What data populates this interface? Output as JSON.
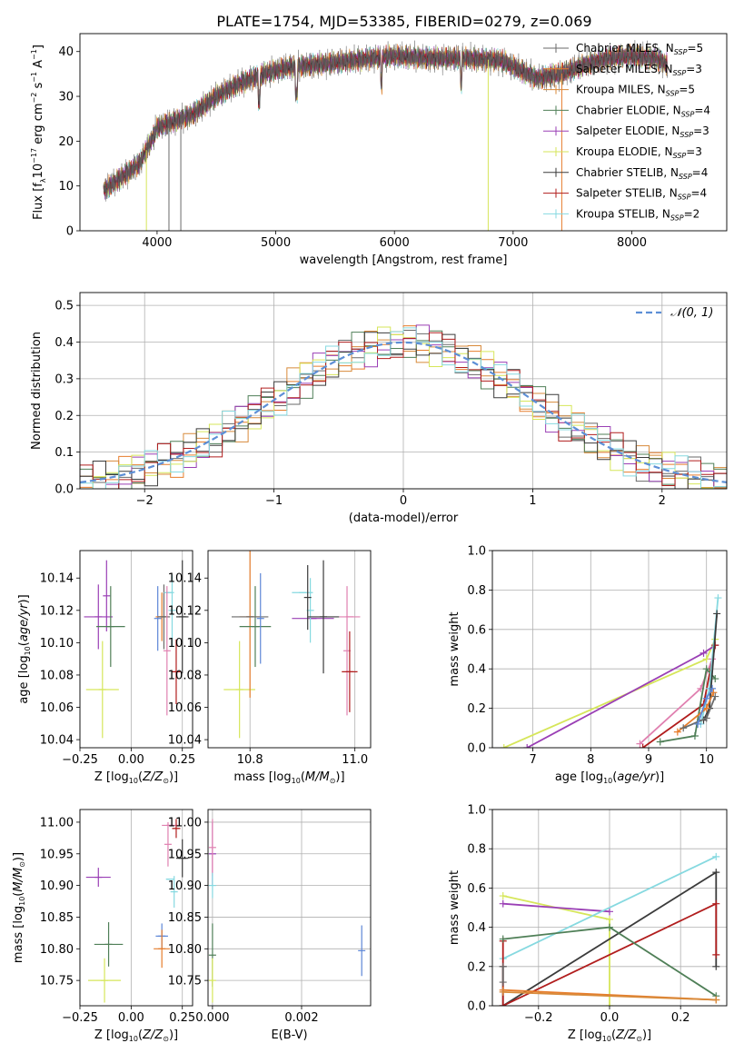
{
  "figure_title": "PLATE=1754, MJD=53385, FIBERID=0279, z=0.069",
  "colors": {
    "chabrier_miles": "#6a6a6a",
    "salpeter_miles": "#e67d2c",
    "kroupa_miles": "#d88a3a",
    "chabrier_elodie": "#4f7f57",
    "salpeter_elodie": "#9a3fb5",
    "kroupa_elodie": "#d6e65a",
    "chabrier_stelib": "#3b3b3b",
    "salpeter_stelib": "#b11d1d",
    "kroupa_stelib": "#86d9e0",
    "pink": "#e080b0",
    "blue": "#5d86d6",
    "gauss": "#5d8fd6"
  },
  "chart_data": [
    {
      "id": "spectrum",
      "type": "line",
      "title": "",
      "xlabel": "wavelength [Angstrom, rest frame]",
      "ylabel_html": "Flux [f<tspan font-size='8' dy='4'>λ</tspan><tspan dy='-4'>10</tspan><tspan font-size='8' dy='-6'>−17</tspan><tspan dy='6'> erg cm</tspan><tspan font-size='8' dy='-6'>−2</tspan><tspan dy='6'> s</tspan><tspan font-size='8' dy='-6'>−1</tspan><tspan dy='6'> A</tspan><tspan font-size='8' dy='-6'>−1</tspan><tspan dy='6'>]</tspan>",
      "xlim": [
        3350,
        8800
      ],
      "ylim": [
        0,
        44
      ],
      "xticks": [
        4000,
        5000,
        6000,
        7000,
        8000
      ],
      "yticks": [
        0,
        10,
        20,
        30,
        40
      ],
      "legend": [
        {
          "label_html": "Chabrier MILES, N<tspan font-size='8' dy='3' font-style='italic'>SSP</tspan><tspan dy='-3'>=5</tspan>",
          "color_key": "chabrier_miles"
        },
        {
          "label_html": "Salpeter MILES, N<tspan font-size='8' dy='3' font-style='italic'>SSP</tspan><tspan dy='-3'>=3</tspan>",
          "color_key": "salpeter_miles"
        },
        {
          "label_html": "Kroupa MILES, N<tspan font-size='8' dy='3' font-style='italic'>SSP</tspan><tspan dy='-3'>=5</tspan>",
          "color_key": "kroupa_miles"
        },
        {
          "label_html": "Chabrier ELODIE, N<tspan font-size='8' dy='3' font-style='italic'>SSP</tspan><tspan dy='-3'>=4</tspan>",
          "color_key": "chabrier_elodie"
        },
        {
          "label_html": "Salpeter ELODIE, N<tspan font-size='8' dy='3' font-style='italic'>SSP</tspan><tspan dy='-3'>=3</tspan>",
          "color_key": "salpeter_elodie"
        },
        {
          "label_html": "Kroupa ELODIE, N<tspan font-size='8' dy='3' font-style='italic'>SSP</tspan><tspan dy='-3'>=3</tspan>",
          "color_key": "kroupa_elodie"
        },
        {
          "label_html": "Chabrier STELIB, N<tspan font-size='8' dy='3' font-style='italic'>SSP</tspan><tspan dy='-3'>=4</tspan>",
          "color_key": "chabrier_stelib"
        },
        {
          "label_html": "Salpeter STELIB, N<tspan font-size='8' dy='3' font-style='italic'>SSP</tspan><tspan dy='-3'>=4</tspan>",
          "color_key": "salpeter_stelib"
        },
        {
          "label_html": "Kroupa STELIB, N<tspan font-size='8' dy='3' font-style='italic'>SSP</tspan><tspan dy='-3'>=2</tspan>",
          "color_key": "kroupa_stelib"
        }
      ],
      "continuum": {
        "x": [
          3550,
          3700,
          3850,
          3950,
          4000,
          4100,
          4300,
          4500,
          4700,
          4900,
          5100,
          5300,
          5500,
          5800,
          6000,
          6300,
          6600,
          6900,
          7200,
          7400,
          7600,
          7800,
          8000,
          8200,
          8300
        ],
        "y": [
          9,
          12,
          15,
          20,
          23,
          24,
          26,
          30,
          33,
          35,
          36.5,
          37,
          37.5,
          38.5,
          39,
          38.5,
          38.5,
          38,
          34,
          35,
          37,
          38.5,
          39,
          38.5,
          37
        ]
      },
      "dropouts": [
        {
          "x": 3910,
          "color_key": "kroupa_elodie"
        },
        {
          "x": 4100,
          "color_key": "chabrier_miles"
        },
        {
          "x": 4200,
          "color_key": "chabrier_miles"
        },
        {
          "x": 6790,
          "color_key": "kroupa_elodie"
        },
        {
          "x": 7410,
          "color_key": "salpeter_miles"
        }
      ]
    },
    {
      "id": "residuals",
      "type": "histogram",
      "title": "",
      "xlabel": "(data-model)/error",
      "ylabel": "Normed distribution",
      "xlim": [
        -2.5,
        2.5
      ],
      "ylim": [
        0,
        0.535
      ],
      "xticks": [
        -2,
        -1,
        0,
        1,
        2
      ],
      "yticks": [
        0.0,
        0.1,
        0.2,
        0.3,
        0.4,
        0.5
      ],
      "grid": true,
      "legend_label": "𝒩(0, 1)",
      "legend_position": "top-right",
      "bin_width": 0.1
    },
    {
      "id": "age_vs_z",
      "type": "scatter",
      "xlabel": "Z [log<tspan font-size='8' dy='3'>10</tspan><tspan dy='-3'>(</tspan><tspan font-style='italic'>Z/Z</tspan><tspan font-size='8' dy='3'>⊙</tspan><tspan dy='-3'>)]</tspan>",
      "ylabel_html": "age  [log<tspan font-size='8' dy='3'>10</tspan><tspan dy='-3'>(</tspan><tspan font-style='italic'>age/yr</tspan>)]",
      "xlim": [
        -0.25,
        0.3
      ],
      "ylim": [
        10.035,
        10.157
      ],
      "xticks": [
        -0.25,
        0.0,
        0.25
      ],
      "yticks": [
        10.04,
        10.06,
        10.08,
        10.1,
        10.12,
        10.14
      ],
      "grid": "x",
      "points": [
        {
          "x": -0.16,
          "y": 10.116,
          "xerr": 0.07,
          "yerr": 0.02,
          "color_key": "salpeter_elodie"
        },
        {
          "x": -0.12,
          "y": 10.129,
          "xerr": 0.0,
          "yerr": 0.022,
          "color_key": "salpeter_elodie"
        },
        {
          "x": -0.1,
          "y": 10.11,
          "xerr": 0.07,
          "yerr": 0.025,
          "color_key": "chabrier_elodie"
        },
        {
          "x": -0.14,
          "y": 10.071,
          "xerr": 0.08,
          "yerr": 0.03,
          "color_key": "kroupa_elodie"
        },
        {
          "x": 0.13,
          "y": 10.115,
          "xerr": 0.0,
          "yerr": 0.02,
          "color_key": "blue"
        },
        {
          "x": 0.15,
          "y": 10.116,
          "xerr": 0.03,
          "yerr": 0.015,
          "color_key": "salpeter_miles"
        },
        {
          "x": 0.16,
          "y": 10.116,
          "xerr": 0.03,
          "yerr": 0.02,
          "color_key": "chabrier_miles"
        },
        {
          "x": 0.185,
          "y": 10.131,
          "xerr": 0.025,
          "yerr": 0.0,
          "color_key": "kroupa_stelib"
        },
        {
          "x": 0.2,
          "y": 10.12,
          "xerr": 0.0,
          "yerr": 0.022,
          "color_key": "kroupa_stelib"
        },
        {
          "x": 0.175,
          "y": 10.095,
          "xerr": 0.0,
          "yerr": 0.04,
          "color_key": "pink"
        },
        {
          "x": 0.25,
          "y": 10.116,
          "xerr": 0.03,
          "yerr": 0.035,
          "color_key": "chabrier_stelib"
        },
        {
          "x": 0.22,
          "y": 10.082,
          "xerr": 0.02,
          "yerr": 0.02,
          "color_key": "salpeter_stelib"
        }
      ]
    },
    {
      "id": "age_vs_mass",
      "type": "scatter",
      "xlabel": "mass [log<tspan font-size='8' dy='3'>10</tspan><tspan dy='-3'>(</tspan><tspan font-style='italic'>M/M</tspan><tspan font-size='8' dy='3'>⊙</tspan><tspan dy='-3'>)]</tspan>",
      "ylabel_html": "",
      "xlim": [
        10.72,
        11.03
      ],
      "ylim": [
        10.035,
        10.157
      ],
      "xticks": [
        10.8,
        11.0
      ],
      "yticks": [
        10.04,
        10.06,
        10.08,
        10.1,
        10.12,
        10.14
      ],
      "grid": "x",
      "points": [
        {
          "x": 10.78,
          "y": 10.071,
          "xerr": 0.03,
          "yerr": 0.03,
          "color_key": "kroupa_elodie"
        },
        {
          "x": 10.8,
          "y": 10.116,
          "xerr": 0.02,
          "yerr": 0.05,
          "color_key": "salpeter_miles"
        },
        {
          "x": 10.81,
          "y": 10.11,
          "xerr": 0.03,
          "yerr": 0.025,
          "color_key": "chabrier_elodie"
        },
        {
          "x": 10.8,
          "y": 10.116,
          "xerr": 0.035,
          "yerr": 0.0,
          "color_key": "chabrier_miles"
        },
        {
          "x": 10.82,
          "y": 10.115,
          "xerr": 0.0,
          "yerr": 0.028,
          "color_key": "blue"
        },
        {
          "x": 10.92,
          "y": 10.115,
          "xerr": 0.04,
          "yerr": 0.0,
          "color_key": "salpeter_elodie"
        },
        {
          "x": 10.9,
          "y": 10.131,
          "xerr": 0.02,
          "yerr": 0.0,
          "color_key": "kroupa_stelib"
        },
        {
          "x": 10.915,
          "y": 10.12,
          "xerr": 0.0,
          "yerr": 0.02,
          "color_key": "kroupa_stelib"
        },
        {
          "x": 10.94,
          "y": 10.116,
          "xerr": 0.03,
          "yerr": 0.035,
          "color_key": "chabrier_stelib"
        },
        {
          "x": 10.99,
          "y": 10.116,
          "xerr": 0.02,
          "yerr": 0.0,
          "color_key": "pink"
        },
        {
          "x": 10.985,
          "y": 10.095,
          "xerr": 0.0,
          "yerr": 0.04,
          "color_key": "pink"
        },
        {
          "x": 10.99,
          "y": 10.082,
          "xerr": 0.015,
          "yerr": 0.025,
          "color_key": "salpeter_stelib"
        },
        {
          "x": 10.91,
          "y": 10.128,
          "xerr": 0.0,
          "yerr": 0.02,
          "color_key": "chabrier_stelib"
        }
      ]
    },
    {
      "id": "weight_vs_age",
      "type": "line",
      "xlabel": "age  [log<tspan font-size='8' dy='3'>10</tspan><tspan dy='-3'>(</tspan><tspan font-style='italic'>age/yr</tspan>)]",
      "ylabel": "mass weight",
      "xlim": [
        6.3,
        10.35
      ],
      "ylim": [
        0,
        1.0
      ],
      "xticks": [
        7,
        8,
        9,
        10
      ],
      "yticks": [
        0.0,
        0.2,
        0.4,
        0.6,
        0.8,
        1.0
      ],
      "grid": true,
      "series": [
        {
          "color_key": "kroupa_elodie",
          "x": [
            6.5,
            10.0,
            10.15
          ],
          "y": [
            0.0,
            0.45,
            0.55
          ]
        },
        {
          "color_key": "salpeter_elodie",
          "x": [
            6.9,
            9.95,
            10.15
          ],
          "y": [
            0.0,
            0.48,
            0.52
          ]
        },
        {
          "color_key": "pink",
          "x": [
            8.85,
            9.9,
            10.1
          ],
          "y": [
            0.02,
            0.3,
            0.45
          ]
        },
        {
          "color_key": "salpeter_stelib",
          "x": [
            8.9,
            9.95,
            10.15
          ],
          "y": [
            0.0,
            0.22,
            0.52
          ]
        },
        {
          "color_key": "chabrier_elodie",
          "x": [
            9.2,
            9.8,
            10.0,
            10.15
          ],
          "y": [
            0.03,
            0.06,
            0.4,
            0.35
          ]
        },
        {
          "color_key": "kroupa_stelib",
          "x": [
            9.9,
            10.05,
            10.2
          ],
          "y": [
            0.12,
            0.3,
            0.76
          ]
        },
        {
          "color_key": "chabrier_stelib",
          "x": [
            9.95,
            10.05,
            10.18
          ],
          "y": [
            0.14,
            0.2,
            0.68
          ]
        },
        {
          "color_key": "salpeter_miles",
          "x": [
            9.5,
            10.0,
            10.12
          ],
          "y": [
            0.08,
            0.2,
            0.28
          ]
        },
        {
          "color_key": "chabrier_miles",
          "x": [
            9.6,
            10.0,
            10.15
          ],
          "y": [
            0.1,
            0.15,
            0.26
          ]
        },
        {
          "color_key": "blue",
          "x": [
            9.85,
            10.0,
            10.1
          ],
          "y": [
            0.12,
            0.25,
            0.3
          ]
        }
      ]
    },
    {
      "id": "mass_vs_z",
      "type": "scatter",
      "xlabel": "Z [log<tspan font-size='8' dy='3'>10</tspan><tspan dy='-3'>(</tspan><tspan font-style='italic'>Z/Z</tspan><tspan font-size='8' dy='3'>⊙</tspan><tspan dy='-3'>)]</tspan>",
      "ylabel_html": "mass [log<tspan font-size='8' dy='3'>10</tspan><tspan dy='-3'>(</tspan><tspan font-style='italic'>M/M</tspan><tspan font-size='8' dy='3'>⊙</tspan><tspan dy='-3'>)]</tspan>",
      "xlim": [
        -0.25,
        0.3
      ],
      "ylim": [
        10.71,
        11.02
      ],
      "xticks": [
        -0.25,
        0.0,
        0.25
      ],
      "yticks": [
        10.75,
        10.8,
        10.85,
        10.9,
        10.95,
        11.0
      ],
      "grid": "x",
      "points": [
        {
          "x": -0.16,
          "y": 10.913,
          "xerr": 0.06,
          "yerr": 0.015,
          "color_key": "salpeter_elodie"
        },
        {
          "x": -0.11,
          "y": 10.807,
          "xerr": 0.07,
          "yerr": 0.035,
          "color_key": "chabrier_elodie"
        },
        {
          "x": -0.13,
          "y": 10.75,
          "xerr": 0.08,
          "yerr": 0.035,
          "color_key": "kroupa_elodie"
        },
        {
          "x": 0.15,
          "y": 10.82,
          "xerr": 0.03,
          "yerr": 0.02,
          "color_key": "blue"
        },
        {
          "x": 0.15,
          "y": 10.8,
          "xerr": 0.04,
          "yerr": 0.03,
          "color_key": "salpeter_miles"
        },
        {
          "x": 0.19,
          "y": 10.995,
          "xerr": 0.04,
          "yerr": 0.0,
          "color_key": "pink"
        },
        {
          "x": 0.18,
          "y": 10.965,
          "xerr": 0.0,
          "yerr": 0.035,
          "color_key": "pink"
        },
        {
          "x": 0.19,
          "y": 10.91,
          "xerr": 0.02,
          "yerr": 0.0,
          "color_key": "kroupa_stelib"
        },
        {
          "x": 0.21,
          "y": 10.89,
          "xerr": 0.0,
          "yerr": 0.025,
          "color_key": "kroupa_stelib"
        },
        {
          "x": 0.22,
          "y": 10.99,
          "xerr": 0.02,
          "yerr": 0.015,
          "color_key": "salpeter_stelib"
        },
        {
          "x": 0.25,
          "y": 10.943,
          "xerr": 0.03,
          "yerr": 0.03,
          "color_key": "chabrier_stelib"
        }
      ]
    },
    {
      "id": "mass_vs_ebv",
      "type": "scatter",
      "xlabel": "E(B-V)",
      "ylabel_html": "",
      "xlim": [
        -0.0001,
        0.00355
      ],
      "ylim": [
        10.71,
        11.02
      ],
      "xticks": [
        0.0,
        0.002
      ],
      "xtick_labels": [
        "0.000",
        "0.002"
      ],
      "yticks": [
        10.75,
        10.8,
        10.85,
        10.9,
        10.95,
        11.0
      ],
      "grid": true,
      "points": [
        {
          "x": 0.0,
          "y": 10.95,
          "xerr": 0.0,
          "yerr": 0.05,
          "color_key": "salpeter_elodie"
        },
        {
          "x": 0.0,
          "y": 10.96,
          "xerr": 0.0,
          "yerr": 0.045,
          "color_key": "pink"
        },
        {
          "x": 0.0,
          "y": 10.79,
          "xerr": 0.0,
          "yerr": 0.05,
          "color_key": "chabrier_elodie"
        },
        {
          "x": 0.0,
          "y": 10.75,
          "xerr": 0.0,
          "yerr": 0.035,
          "color_key": "kroupa_elodie"
        },
        {
          "x": 0.0,
          "y": 10.9,
          "xerr": 0.0,
          "yerr": 0.02,
          "color_key": "kroupa_stelib"
        },
        {
          "x": 0.00335,
          "y": 10.797,
          "xerr": 0.0,
          "yerr": 0.04,
          "color_key": "blue"
        }
      ]
    },
    {
      "id": "weight_vs_z",
      "type": "line",
      "xlabel": "Z [log<tspan font-size='8' dy='3'>10</tspan><tspan dy='-3'>(</tspan><tspan font-style='italic'>Z/Z</tspan><tspan font-size='8' dy='3'>⊙</tspan><tspan dy='-3'>)]</tspan>",
      "ylabel": "mass weight",
      "xlim": [
        -0.33,
        0.33
      ],
      "ylim": [
        0,
        1.0
      ],
      "xticks": [
        -0.2,
        0.0,
        0.2
      ],
      "yticks": [
        0.0,
        0.2,
        0.4,
        0.6,
        0.8,
        1.0
      ],
      "grid": true,
      "series": [
        {
          "color_key": "kroupa_elodie",
          "x": [
            -0.3,
            0.0,
            0.0
          ],
          "y": [
            0.56,
            0.44,
            0.0
          ]
        },
        {
          "color_key": "salpeter_elodie",
          "x": [
            -0.3,
            0.0
          ],
          "y": [
            0.52,
            0.48
          ]
        },
        {
          "color_key": "kroupa_stelib",
          "x": [
            -0.3,
            0.3
          ],
          "y": [
            0.24,
            0.76
          ]
        },
        {
          "color_key": "chabrier_stelib",
          "x": [
            -0.3,
            -0.3,
            0.3,
            0.3
          ],
          "y": [
            0.2,
            0.0,
            0.68,
            0.2
          ]
        },
        {
          "color_key": "salpeter_stelib",
          "x": [
            -0.3,
            -0.3,
            0.3,
            0.3
          ],
          "y": [
            0.33,
            0.0,
            0.52,
            0.26
          ]
        },
        {
          "color_key": "chabrier_elodie",
          "x": [
            -0.3,
            0.0,
            0.3
          ],
          "y": [
            0.34,
            0.4,
            0.05
          ]
        },
        {
          "color_key": "salpeter_miles",
          "x": [
            -0.3,
            0.3
          ],
          "y": [
            0.08,
            0.03
          ]
        },
        {
          "color_key": "chabrier_miles",
          "x": [
            -0.3,
            -0.3
          ],
          "y": [
            0.12,
            0.2
          ]
        },
        {
          "color_key": "kroupa_miles",
          "x": [
            -0.3,
            0.3
          ],
          "y": [
            0.07,
            0.03
          ]
        }
      ]
    }
  ]
}
